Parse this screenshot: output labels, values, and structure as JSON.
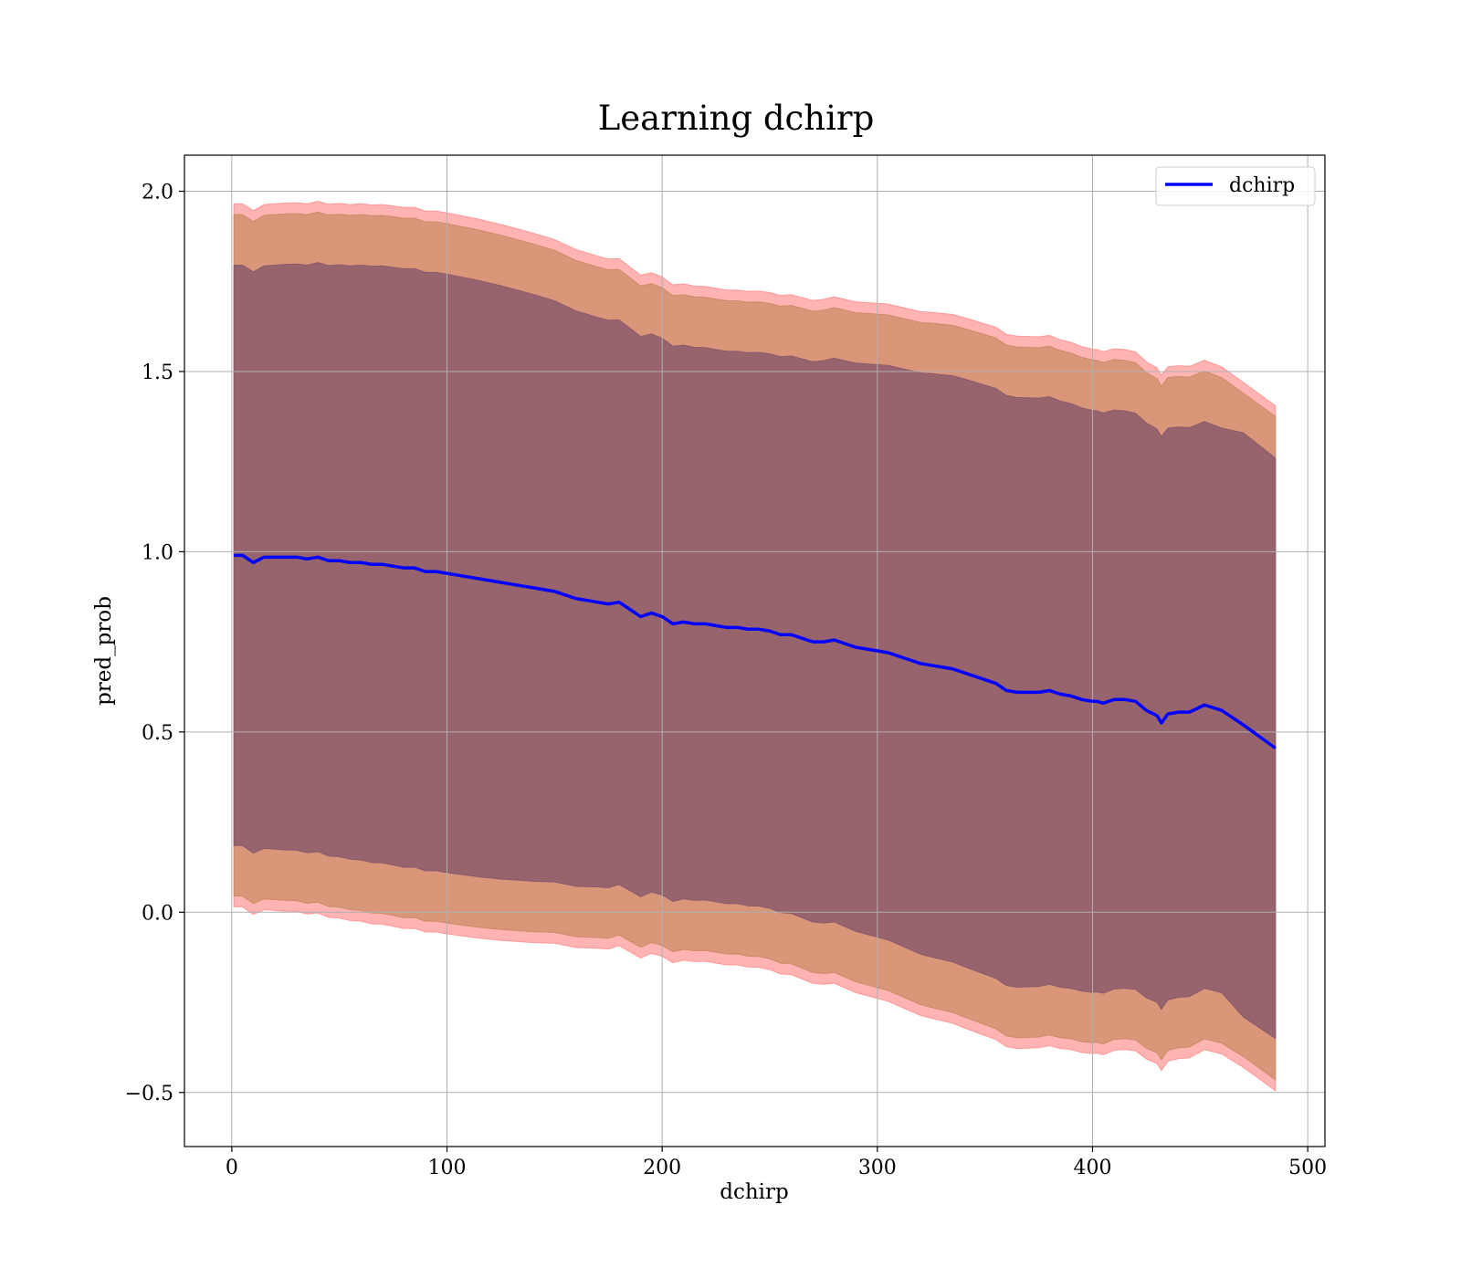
{
  "chart_data": {
    "type": "line",
    "title": "Learning dchirp",
    "xlabel": "dchirp",
    "ylabel": "pred_prob",
    "xlim": [
      -22,
      508
    ],
    "ylim": [
      -0.65,
      2.1
    ],
    "xticks": [
      0,
      100,
      200,
      300,
      400,
      500
    ],
    "yticks": [
      -0.5,
      0.0,
      0.5,
      1.0,
      1.5,
      2.0
    ],
    "xtick_labels": [
      "0",
      "100",
      "200",
      "300",
      "400",
      "500"
    ],
    "ytick_labels": [
      "−0.5",
      "0.0",
      "0.5",
      "1.0",
      "1.5",
      "2.0"
    ],
    "grid": true,
    "legend": {
      "position": "top-right",
      "entries": [
        "dchirp"
      ]
    },
    "x": [
      1,
      5,
      10,
      15,
      20,
      25,
      30,
      35,
      40,
      45,
      50,
      55,
      60,
      65,
      70,
      75,
      80,
      85,
      90,
      95,
      100,
      105,
      110,
      115,
      120,
      125,
      130,
      135,
      140,
      145,
      150,
      155,
      160,
      165,
      170,
      175,
      180,
      185,
      190,
      195,
      200,
      205,
      210,
      215,
      220,
      225,
      230,
      235,
      240,
      245,
      250,
      255,
      260,
      265,
      270,
      275,
      280,
      285,
      290,
      295,
      300,
      305,
      310,
      315,
      320,
      325,
      330,
      335,
      340,
      345,
      350,
      355,
      360,
      365,
      370,
      375,
      380,
      385,
      390,
      395,
      400,
      402,
      405,
      410,
      415,
      420,
      425,
      430,
      432,
      435,
      440,
      445,
      452,
      460,
      470,
      485
    ],
    "series": [
      {
        "name": "dchirp",
        "color": "#0000ff",
        "values": [
          0.99,
          0.99,
          0.97,
          0.985,
          0.985,
          0.985,
          0.985,
          0.98,
          0.985,
          0.975,
          0.975,
          0.97,
          0.97,
          0.965,
          0.965,
          0.96,
          0.955,
          0.955,
          0.945,
          0.945,
          0.94,
          0.935,
          0.93,
          0.925,
          0.92,
          0.915,
          0.91,
          0.905,
          0.9,
          0.895,
          0.89,
          0.88,
          0.87,
          0.865,
          0.86,
          0.855,
          0.86,
          0.84,
          0.82,
          0.83,
          0.82,
          0.8,
          0.805,
          0.8,
          0.8,
          0.795,
          0.79,
          0.79,
          0.785,
          0.785,
          0.78,
          0.77,
          0.77,
          0.76,
          0.75,
          0.75,
          0.755,
          0.745,
          0.735,
          0.73,
          0.725,
          0.72,
          0.71,
          0.7,
          0.69,
          0.685,
          0.68,
          0.675,
          0.665,
          0.655,
          0.645,
          0.635,
          0.615,
          0.61,
          0.61,
          0.61,
          0.615,
          0.605,
          0.6,
          0.59,
          0.585,
          0.585,
          0.58,
          0.59,
          0.59,
          0.585,
          0.56,
          0.545,
          0.525,
          0.55,
          0.555,
          0.555,
          0.575,
          0.56,
          0.52,
          0.455
        ]
      }
    ],
    "bands": [
      {
        "sigma": 3,
        "color": "#ff9999",
        "opacity": 0.75,
        "half_width": [
          0.975,
          0.975,
          0.976,
          0.978,
          0.98,
          0.982,
          0.983,
          0.985,
          0.987,
          0.989,
          0.991,
          0.993,
          0.995,
          0.997,
          0.998,
          0.999,
          1.0,
          1.0,
          1.0,
          1.0,
          1.0,
          0.999,
          0.998,
          0.997,
          0.995,
          0.993,
          0.99,
          0.987,
          0.984,
          0.98,
          0.976,
          0.972,
          0.968,
          0.964,
          0.96,
          0.957,
          0.953,
          0.95,
          0.947,
          0.944,
          0.942,
          0.94,
          0.938,
          0.937,
          0.936,
          0.936,
          0.936,
          0.936,
          0.937,
          0.938,
          0.939,
          0.941,
          0.943,
          0.945,
          0.947,
          0.95,
          0.952,
          0.955,
          0.958,
          0.961,
          0.964,
          0.967,
          0.97,
          0.973,
          0.976,
          0.979,
          0.981,
          0.983,
          0.985,
          0.986,
          0.987,
          0.988,
          0.988,
          0.988,
          0.987,
          0.986,
          0.985,
          0.983,
          0.981,
          0.979,
          0.977,
          0.976,
          0.975,
          0.973,
          0.971,
          0.969,
          0.967,
          0.965,
          0.964,
          0.963,
          0.961,
          0.959,
          0.956,
          0.953,
          0.95,
          0.95
        ]
      },
      {
        "sigma": 2.85,
        "color": "#cc8c66",
        "opacity": 0.75,
        "half_width": [
          0.945,
          0.945,
          0.946,
          0.948,
          0.95,
          0.952,
          0.953,
          0.955,
          0.957,
          0.959,
          0.961,
          0.963,
          0.965,
          0.967,
          0.968,
          0.969,
          0.97,
          0.97,
          0.97,
          0.97,
          0.97,
          0.969,
          0.968,
          0.967,
          0.965,
          0.963,
          0.96,
          0.957,
          0.954,
          0.95,
          0.946,
          0.942,
          0.938,
          0.934,
          0.93,
          0.927,
          0.923,
          0.92,
          0.917,
          0.914,
          0.912,
          0.91,
          0.908,
          0.907,
          0.906,
          0.906,
          0.906,
          0.906,
          0.907,
          0.908,
          0.909,
          0.911,
          0.913,
          0.915,
          0.917,
          0.92,
          0.922,
          0.925,
          0.928,
          0.931,
          0.934,
          0.937,
          0.94,
          0.943,
          0.946,
          0.949,
          0.951,
          0.953,
          0.955,
          0.956,
          0.957,
          0.958,
          0.958,
          0.958,
          0.957,
          0.956,
          0.955,
          0.953,
          0.951,
          0.949,
          0.947,
          0.946,
          0.945,
          0.943,
          0.941,
          0.939,
          0.937,
          0.935,
          0.934,
          0.933,
          0.931,
          0.929,
          0.926,
          0.923,
          0.92,
          0.92
        ]
      },
      {
        "sigma": 2.5,
        "color": "#8b5a6b",
        "opacity": 0.85,
        "half_width": [
          0.805,
          0.805,
          0.806,
          0.808,
          0.81,
          0.812,
          0.813,
          0.815,
          0.817,
          0.819,
          0.821,
          0.823,
          0.825,
          0.827,
          0.828,
          0.829,
          0.83,
          0.83,
          0.83,
          0.83,
          0.83,
          0.829,
          0.828,
          0.827,
          0.825,
          0.823,
          0.82,
          0.817,
          0.814,
          0.81,
          0.806,
          0.802,
          0.798,
          0.794,
          0.79,
          0.787,
          0.783,
          0.78,
          0.777,
          0.774,
          0.772,
          0.77,
          0.768,
          0.767,
          0.766,
          0.766,
          0.766,
          0.766,
          0.767,
          0.768,
          0.769,
          0.771,
          0.773,
          0.775,
          0.777,
          0.78,
          0.782,
          0.785,
          0.788,
          0.791,
          0.794,
          0.797,
          0.8,
          0.803,
          0.806,
          0.809,
          0.811,
          0.813,
          0.815,
          0.816,
          0.817,
          0.818,
          0.818,
          0.818,
          0.817,
          0.816,
          0.815,
          0.813,
          0.811,
          0.809,
          0.807,
          0.806,
          0.805,
          0.803,
          0.801,
          0.799,
          0.797,
          0.795,
          0.794,
          0.793,
          0.791,
          0.789,
          0.786,
          0.783,
          0.81,
          0.805
        ]
      }
    ]
  }
}
